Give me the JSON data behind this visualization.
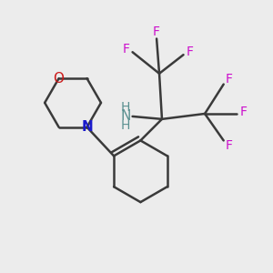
{
  "background_color": "#ececec",
  "bond_color": "#3a3a3a",
  "bond_width": 1.8,
  "atom_colors": {
    "N_morpholine": "#1a1acc",
    "N_amine": "#5a9090",
    "O": "#cc1a1a",
    "F": "#cc10cc"
  },
  "layout": {
    "xlim": [
      0.0,
      1.0
    ],
    "ylim": [
      0.0,
      1.0
    ]
  }
}
